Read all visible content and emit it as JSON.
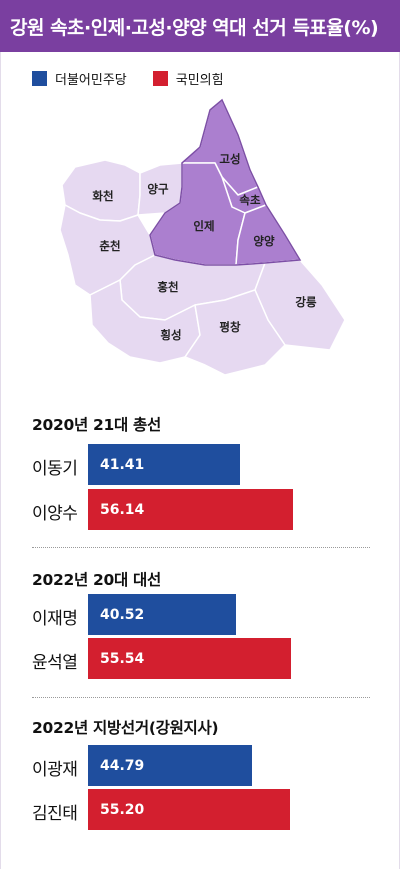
{
  "title": "강원 속초·인제·고성·양양 역대 선거 득표율(%)",
  "legend": [
    {
      "label": "더불어민주당",
      "color": "#1f4e9e"
    },
    {
      "label": "국민의힘",
      "color": "#d31f2f"
    }
  ],
  "map": {
    "regions": [
      {
        "name": "화천",
        "highlight": false
      },
      {
        "name": "양구",
        "highlight": false
      },
      {
        "name": "고성",
        "highlight": true
      },
      {
        "name": "속초",
        "highlight": true
      },
      {
        "name": "인제",
        "highlight": true
      },
      {
        "name": "양양",
        "highlight": true
      },
      {
        "name": "춘천",
        "highlight": false
      },
      {
        "name": "홍천",
        "highlight": false
      },
      {
        "name": "강릉",
        "highlight": false
      },
      {
        "name": "횡성",
        "highlight": false
      },
      {
        "name": "평창",
        "highlight": false
      }
    ],
    "colors": {
      "highlight": "#ab7fcf",
      "base": "#e6d9f1",
      "border": "#ffffff",
      "outline": "#7d4fa6"
    }
  },
  "chart_data": {
    "type": "bar",
    "orientation": "horizontal",
    "xlim": [
      0,
      100
    ],
    "groups": [
      {
        "title": "2020년 21대 총선",
        "candidates": [
          {
            "name": "이동기",
            "party": "더불어민주당",
            "value": 41.41,
            "label": "41.41"
          },
          {
            "name": "이양수",
            "party": "국민의힘",
            "value": 56.14,
            "label": "56.14"
          }
        ]
      },
      {
        "title": "2022년 20대 대선",
        "candidates": [
          {
            "name": "이재명",
            "party": "더불어민주당",
            "value": 40.52,
            "label": "40.52"
          },
          {
            "name": "윤석열",
            "party": "국민의힘",
            "value": 55.54,
            "label": "55.54"
          }
        ]
      },
      {
        "title": "2022년 지방선거(강원지사)",
        "candidates": [
          {
            "name": "이광재",
            "party": "더불어민주당",
            "value": 44.79,
            "label": "44.79"
          },
          {
            "name": "김진태",
            "party": "국민의힘",
            "value": 55.2,
            "label": "55.20"
          }
        ]
      }
    ]
  }
}
